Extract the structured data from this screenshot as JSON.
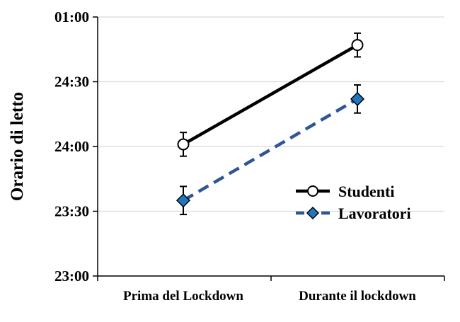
{
  "chart_data": {
    "type": "line",
    "ylabel": "Orario di letto",
    "xlabel": "",
    "title": "",
    "categories": [
      "Prima del Lockdown",
      "Durante il lockdown"
    ],
    "y_tick_labels": [
      "23:00",
      "23:30",
      "24:00",
      "24:30",
      "01:00"
    ],
    "y_unit": "minutes after 23:00",
    "ylim": [
      0,
      120
    ],
    "y_ticks": [
      0,
      30,
      60,
      90,
      120
    ],
    "grid": true,
    "legend_position": "right",
    "series": [
      {
        "name": "Studenti",
        "values": [
          61,
          107
        ],
        "errors": [
          5.5,
          5.5
        ],
        "color": "#000000",
        "line_style": "solid",
        "marker": "circle-open"
      },
      {
        "name": "Lavoratori",
        "values": [
          35,
          82
        ],
        "errors": [
          6.5,
          6.5
        ],
        "color": "#2F5597",
        "line_style": "dashed",
        "marker": "diamond",
        "marker_fill": "#1F77C0"
      }
    ]
  }
}
